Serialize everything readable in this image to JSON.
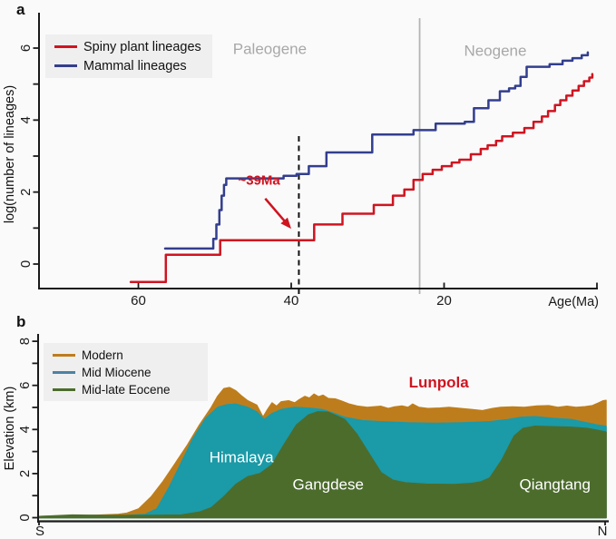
{
  "colors": {
    "background": "#fafafa",
    "axis": "#1a1a1a",
    "spiny_red": "#cf1420",
    "mammal_blue": "#333e8e",
    "era_text_gray": "#a8a8a8",
    "boundary_line_gray": "#b4b4b4",
    "dashed_line_black": "#111111",
    "legend_background": "#efefef",
    "modern_orange": "#be7d1c",
    "mid_miocene_teal": "#1b9aa7",
    "mid_miocene_legend_swatch": "#4d82a3",
    "mid_late_eocene_green": "#4c6c2c",
    "annotation_red": "#cf1420",
    "region_label_white": "#ffffff",
    "text_black": "#1a1a1a"
  },
  "panel_a": {
    "label": "a",
    "ylabel": "log(number of lineages)",
    "xlabel": "Age(Ma)"
  },
  "panel_b": {
    "label": "b",
    "ylabel": "Elevation (km)",
    "south_label": "S",
    "north_label": "N"
  },
  "chart_data": [
    {
      "id": "lineages-through-time",
      "type": "line",
      "step": true,
      "xlabel": "Age(Ma)",
      "ylabel": "log(number of lineages)",
      "x_axis_reversed": true,
      "xlim": [
        73,
        0
      ],
      "ylim": [
        -0.7,
        6.9
      ],
      "x_ticks": [
        {
          "value": 60,
          "label": "60"
        },
        {
          "value": 40,
          "label": "40"
        },
        {
          "value": 20,
          "label": "20"
        },
        {
          "value": 0,
          "label": ""
        }
      ],
      "y_tick_values": [
        0,
        1,
        2,
        3,
        4,
        5,
        6
      ],
      "y_tick_labels": {
        "0": "0",
        "2": "2",
        "4": "4",
        "6": "6"
      },
      "legend_position": "top-left",
      "series": [
        {
          "name": "Spiny plant lineages",
          "color_key": "spiny_red",
          "points": [
            [
              61,
              -0.5
            ],
            [
              56.4,
              0.26
            ],
            [
              49.3,
              0.66
            ],
            [
              37,
              1.1
            ],
            [
              33.3,
              1.4
            ],
            [
              29.2,
              1.64
            ],
            [
              26.7,
              1.9
            ],
            [
              25.2,
              2.07
            ],
            [
              24,
              2.34
            ],
            [
              22.8,
              2.5
            ],
            [
              21.5,
              2.62
            ],
            [
              20.3,
              2.72
            ],
            [
              19,
              2.82
            ],
            [
              18,
              2.9
            ],
            [
              16.5,
              3.05
            ],
            [
              15.2,
              3.2
            ],
            [
              14.3,
              3.3
            ],
            [
              13.2,
              3.42
            ],
            [
              12.4,
              3.55
            ],
            [
              11,
              3.65
            ],
            [
              9.5,
              3.78
            ],
            [
              8.3,
              3.95
            ],
            [
              7.2,
              4.1
            ],
            [
              6.4,
              4.25
            ],
            [
              5.5,
              4.42
            ],
            [
              4.8,
              4.55
            ],
            [
              4,
              4.68
            ],
            [
              3.2,
              4.82
            ],
            [
              2.4,
              4.95
            ],
            [
              1.7,
              5.08
            ],
            [
              1,
              5.18
            ],
            [
              0.6,
              5.28
            ]
          ]
        },
        {
          "name": "Mammal lineages",
          "color_key": "mammal_blue",
          "points": [
            [
              56.5,
              0.43
            ],
            [
              50.2,
              0.7
            ],
            [
              49.8,
              1.1
            ],
            [
              49.4,
              1.5
            ],
            [
              49.1,
              1.9
            ],
            [
              48.8,
              2.2
            ],
            [
              48.5,
              2.38
            ],
            [
              41,
              2.45
            ],
            [
              39.3,
              2.5
            ],
            [
              37.7,
              2.72
            ],
            [
              35.4,
              3.1
            ],
            [
              29.4,
              3.6
            ],
            [
              24,
              3.72
            ],
            [
              21.1,
              3.9
            ],
            [
              17.3,
              3.95
            ],
            [
              16.1,
              4.33
            ],
            [
              14.2,
              4.55
            ],
            [
              12.7,
              4.8
            ],
            [
              11.5,
              4.88
            ],
            [
              10.7,
              4.95
            ],
            [
              10,
              5.2
            ],
            [
              9.2,
              5.48
            ],
            [
              6.2,
              5.55
            ],
            [
              4.5,
              5.65
            ],
            [
              3.2,
              5.72
            ],
            [
              2,
              5.8
            ],
            [
              1.2,
              5.88
            ]
          ]
        }
      ],
      "era_labels": [
        {
          "text": "Paleogene",
          "age": 42.8,
          "value": 5.95
        },
        {
          "text": "Neogene",
          "age": 13.3,
          "value": 5.9
        }
      ],
      "boundaries": [
        {
          "age": 39,
          "style": "dashed",
          "color_key": "dashed_line_black"
        },
        {
          "age": 23.2,
          "style": "solid",
          "color_key": "boundary_line_gray"
        }
      ],
      "annotation": {
        "text": "~39Ma",
        "age": 44.2,
        "value": 2.2,
        "arrow_from_age": 43.4,
        "arrow_from_value": 1.82,
        "arrow_to_age": 40.0,
        "arrow_to_value": 0.98
      }
    },
    {
      "id": "tibet-elevation-profile",
      "type": "area",
      "ylabel": "Elevation (km)",
      "xlim": [
        0,
        100
      ],
      "ylim": [
        0,
        8.3
      ],
      "x_end_labels": [
        "S",
        "N"
      ],
      "y_tick_values": [
        0,
        1,
        2,
        3,
        4,
        5,
        6,
        7,
        8
      ],
      "y_tick_labels": {
        "0": "0",
        "2": "2",
        "4": "4",
        "6": "6",
        "8": "8"
      },
      "legend_position": "top-left",
      "series": [
        {
          "name": "Modern",
          "color_key": "modern_orange",
          "legend_color_key": "modern_orange",
          "points": [
            [
              0,
              0.05
            ],
            [
              9,
              0.1
            ],
            [
              14,
              0.15
            ],
            [
              15.5,
              0.2
            ],
            [
              17.6,
              0.4
            ],
            [
              19.8,
              0.95
            ],
            [
              21.9,
              1.65
            ],
            [
              24,
              2.45
            ],
            [
              26.2,
              3.3
            ],
            [
              28.3,
              4.2
            ],
            [
              30.4,
              5.0
            ],
            [
              31.5,
              5.5
            ],
            [
              32.6,
              5.85
            ],
            [
              33.6,
              5.9
            ],
            [
              34.7,
              5.75
            ],
            [
              35.8,
              5.5
            ],
            [
              36.8,
              5.3
            ],
            [
              38.4,
              5.1
            ],
            [
              39.5,
              4.55
            ],
            [
              40.3,
              4.9
            ],
            [
              41.1,
              5.2
            ],
            [
              41.9,
              5.05
            ],
            [
              42.7,
              5.25
            ],
            [
              44,
              5.3
            ],
            [
              45.1,
              5.2
            ],
            [
              45.9,
              5.35
            ],
            [
              46.9,
              5.5
            ],
            [
              47.7,
              5.42
            ],
            [
              48.5,
              5.6
            ],
            [
              49.3,
              5.48
            ],
            [
              50.1,
              5.55
            ],
            [
              51,
              5.4
            ],
            [
              52.3,
              5.38
            ],
            [
              53.4,
              5.28
            ],
            [
              54.7,
              5.15
            ],
            [
              56.3,
              5.05
            ],
            [
              57.9,
              5.0
            ],
            [
              60.3,
              5.05
            ],
            [
              61.6,
              4.95
            ],
            [
              62.7,
              5.02
            ],
            [
              64,
              5.06
            ],
            [
              65.1,
              5.0
            ],
            [
              65.9,
              5.15
            ],
            [
              67,
              5.0
            ],
            [
              68.6,
              4.95
            ],
            [
              70.7,
              4.97
            ],
            [
              72.3,
              5.0
            ],
            [
              74.4,
              4.95
            ],
            [
              76.3,
              4.9
            ],
            [
              78.2,
              4.85
            ],
            [
              80,
              4.95
            ],
            [
              81.4,
              5.0
            ],
            [
              83.5,
              5.02
            ],
            [
              85.6,
              5.0
            ],
            [
              87.8,
              5.06
            ],
            [
              89.9,
              5.08
            ],
            [
              91.5,
              5.0
            ],
            [
              93.1,
              5.05
            ],
            [
              94.7,
              5.0
            ],
            [
              96.3,
              5.03
            ],
            [
              97.6,
              5.08
            ],
            [
              98.7,
              5.2
            ],
            [
              99.5,
              5.3
            ],
            [
              100,
              5.32
            ]
          ]
        },
        {
          "name": "Mid Miocene",
          "color_key": "mid_miocene_teal",
          "legend_color_key": "mid_miocene_legend_swatch",
          "points": [
            [
              0,
              0.05
            ],
            [
              9,
              0.08
            ],
            [
              15.5,
              0.1
            ],
            [
              18.7,
              0.15
            ],
            [
              20.8,
              0.4
            ],
            [
              23,
              1.4
            ],
            [
              25.1,
              2.5
            ],
            [
              27.2,
              3.6
            ],
            [
              29.4,
              4.5
            ],
            [
              31.5,
              5.0
            ],
            [
              33.1,
              5.12
            ],
            [
              34.7,
              5.15
            ],
            [
              36.8,
              5.0
            ],
            [
              38.4,
              4.8
            ],
            [
              39.7,
              4.45
            ],
            [
              41.1,
              4.72
            ],
            [
              42.7,
              4.9
            ],
            [
              45.1,
              5.0
            ],
            [
              47.5,
              4.97
            ],
            [
              49.9,
              4.9
            ],
            [
              51.8,
              4.75
            ],
            [
              53.9,
              4.55
            ],
            [
              57.1,
              4.4
            ],
            [
              60.3,
              4.35
            ],
            [
              65.1,
              4.3
            ],
            [
              69.9,
              4.28
            ],
            [
              74.7,
              4.3
            ],
            [
              79.5,
              4.35
            ],
            [
              82.7,
              4.45
            ],
            [
              85.1,
              4.55
            ],
            [
              87.5,
              4.58
            ],
            [
              90.7,
              4.5
            ],
            [
              93.9,
              4.45
            ],
            [
              96.6,
              4.3
            ],
            [
              98.4,
              4.2
            ],
            [
              100,
              4.15
            ]
          ]
        },
        {
          "name": "Mid-late Eocene",
          "color_key": "mid_late_eocene_green",
          "legend_color_key": "mid_late_eocene_green",
          "points": [
            [
              0,
              0.05
            ],
            [
              5.9,
              0.12
            ],
            [
              12.3,
              0.1
            ],
            [
              18.7,
              0.1
            ],
            [
              25.1,
              0.12
            ],
            [
              28.3,
              0.25
            ],
            [
              30.4,
              0.45
            ],
            [
              32.6,
              0.95
            ],
            [
              34.7,
              1.5
            ],
            [
              36.8,
              1.85
            ],
            [
              39,
              2.0
            ],
            [
              41.1,
              2.4
            ],
            [
              43.2,
              3.3
            ],
            [
              45.4,
              4.2
            ],
            [
              47.5,
              4.65
            ],
            [
              49.1,
              4.8
            ],
            [
              51,
              4.78
            ],
            [
              52.6,
              4.6
            ],
            [
              53.9,
              4.45
            ],
            [
              56,
              3.8
            ],
            [
              58.2,
              2.9
            ],
            [
              60.3,
              2.05
            ],
            [
              62.4,
              1.7
            ],
            [
              64.6,
              1.58
            ],
            [
              68.3,
              1.52
            ],
            [
              73.1,
              1.5
            ],
            [
              76.3,
              1.55
            ],
            [
              77.9,
              1.62
            ],
            [
              79.5,
              1.8
            ],
            [
              81.6,
              2.6
            ],
            [
              83.8,
              3.7
            ],
            [
              85.4,
              4.05
            ],
            [
              87.5,
              4.15
            ],
            [
              90.7,
              4.12
            ],
            [
              93.9,
              4.1
            ],
            [
              96.6,
              4.05
            ],
            [
              98.7,
              3.95
            ],
            [
              100,
              3.88
            ]
          ]
        }
      ],
      "region_labels": [
        {
          "text": "Himalaya",
          "x": 35.7,
          "km": 2.7,
          "color_key": "region_label_white",
          "bold": false
        },
        {
          "text": "Gangdese",
          "x": 51.0,
          "km": 1.45,
          "color_key": "region_label_white",
          "bold": false
        },
        {
          "text": "Qiangtang",
          "x": 91.0,
          "km": 1.45,
          "color_key": "region_label_white",
          "bold": false
        },
        {
          "text": "Lunpola",
          "x": 70.5,
          "km": 6.1,
          "color_key": "annotation_red",
          "bold": true
        }
      ]
    }
  ]
}
